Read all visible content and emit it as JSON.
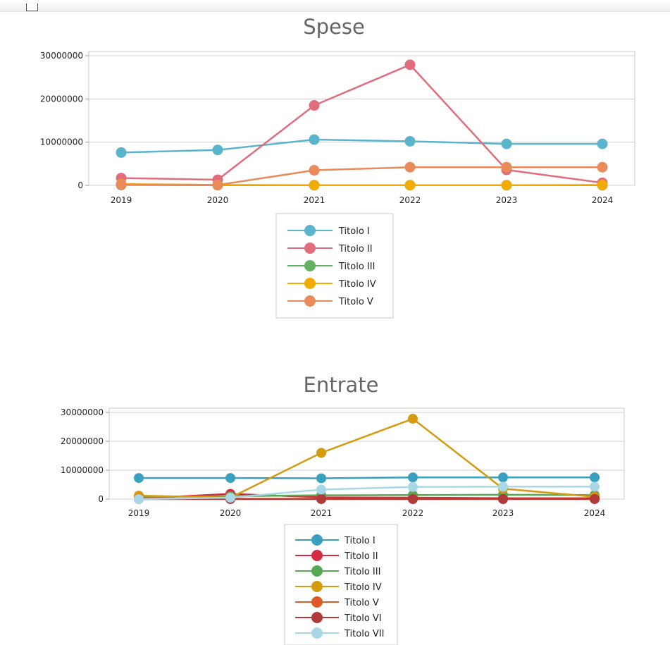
{
  "chart_data": [
    {
      "type": "line",
      "title": "Spese",
      "categories": [
        "2019",
        "2020",
        "2021",
        "2022",
        "2023",
        "2024"
      ],
      "ylim": [
        0,
        30000000
      ],
      "yticks": [
        "0",
        "10000000",
        "20000000",
        "30000000"
      ],
      "grid": true,
      "legend_position": "bottom",
      "series": [
        {
          "name": "Titolo I",
          "color": "#5ab4cc",
          "values": [
            7600000,
            8200000,
            10600000,
            10200000,
            9600000,
            9600000
          ]
        },
        {
          "name": "Titolo II",
          "color": "#e06c7c",
          "values": [
            1700000,
            1300000,
            18500000,
            27900000,
            3600000,
            600000
          ]
        },
        {
          "name": "Titolo III",
          "color": "#62b262",
          "values": [
            100000,
            50000,
            50000,
            50000,
            50000,
            50000
          ]
        },
        {
          "name": "Titolo IV",
          "color": "#f0ac00",
          "values": [
            300000,
            100000,
            50000,
            50000,
            50000,
            100000
          ]
        },
        {
          "name": "Titolo V",
          "color": "#e88a5a",
          "values": [
            200000,
            100000,
            3500000,
            4200000,
            4200000,
            4200000
          ]
        }
      ]
    },
    {
      "type": "line",
      "title": "Entrate",
      "categories": [
        "2019",
        "2020",
        "2021",
        "2022",
        "2023",
        "2024"
      ],
      "ylim": [
        0,
        30000000
      ],
      "yticks": [
        "0",
        "10000000",
        "20000000",
        "30000000"
      ],
      "grid": true,
      "legend_position": "bottom",
      "series": [
        {
          "name": "Titolo I",
          "color": "#3aa0c0",
          "values": [
            7300000,
            7300000,
            7200000,
            7500000,
            7500000,
            7500000
          ]
        },
        {
          "name": "Titolo II",
          "color": "#d42b42",
          "values": [
            200000,
            1800000,
            600000,
            500000,
            300000,
            300000
          ]
        },
        {
          "name": "Titolo III",
          "color": "#56a855",
          "values": [
            800000,
            1000000,
            1300000,
            1400000,
            1500000,
            1400000
          ]
        },
        {
          "name": "Titolo IV",
          "color": "#d49a10",
          "values": [
            1200000,
            500000,
            16000000,
            27800000,
            3600000,
            800000
          ]
        },
        {
          "name": "Titolo V",
          "color": "#e05a28",
          "values": [
            100000,
            100000,
            100000,
            100000,
            100000,
            100000
          ]
        },
        {
          "name": "Titolo VI",
          "color": "#b03a3a",
          "values": [
            0,
            0,
            0,
            0,
            0,
            0
          ]
        },
        {
          "name": "Titolo VII",
          "color": "#a8d8e6",
          "values": [
            0,
            500000,
            3300000,
            4200000,
            4300000,
            4300000
          ]
        }
      ]
    }
  ]
}
